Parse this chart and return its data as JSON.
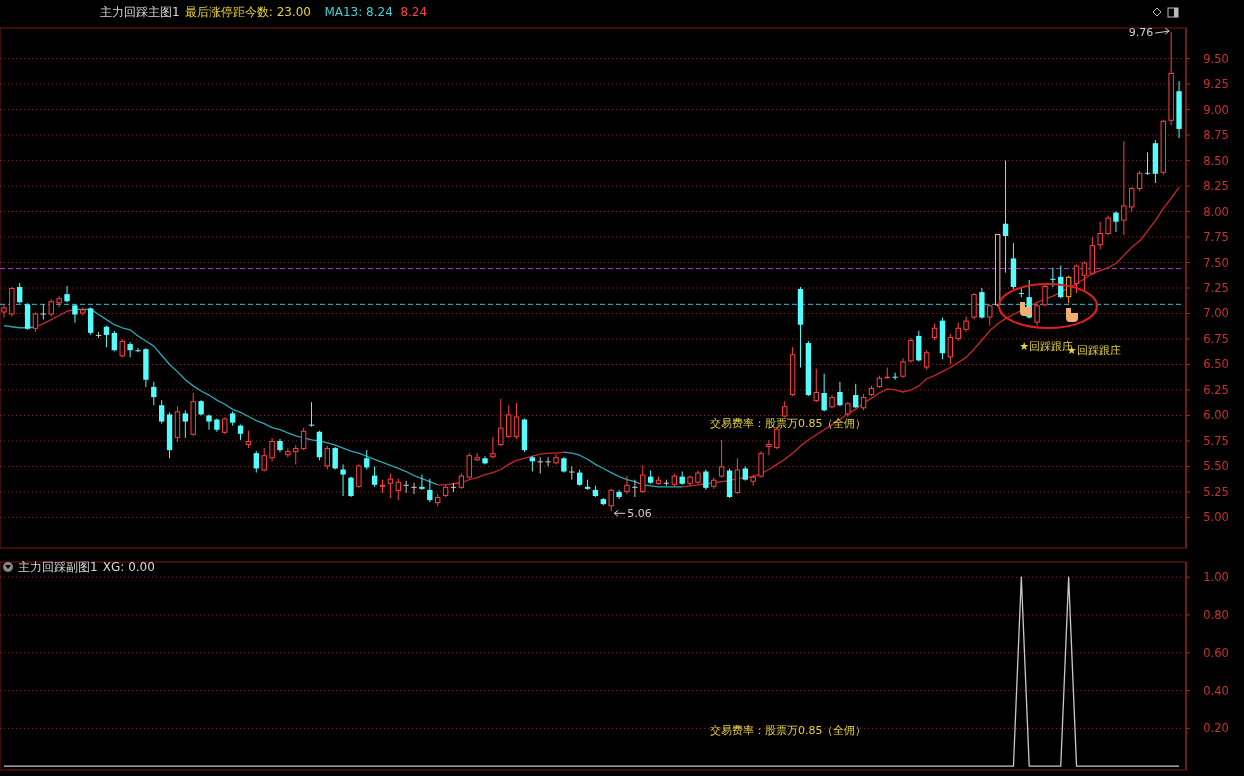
{
  "chart_data": [
    {
      "type": "candlestick",
      "title": "主力回踩主图1",
      "annotations": [
        "最后涨停距今数: 23.00",
        "MA13: 8.24",
        "8.24",
        "交易费率：股票万0.85（全佣）",
        "9.76",
        "5.06",
        "★回踩跟庄",
        "★回踩跟庄"
      ],
      "categories": [
        null,
        null,
        null,
        null,
        null,
        null,
        null,
        null,
        null,
        null,
        null,
        null,
        null,
        null,
        null,
        null,
        null,
        null,
        null,
        null,
        null,
        null,
        null,
        null,
        null,
        null,
        null,
        null,
        null,
        null,
        null,
        null,
        null,
        null,
        null,
        null,
        null,
        null,
        null,
        null,
        null,
        null,
        null,
        null,
        null,
        null,
        null,
        null,
        null,
        null,
        null,
        null,
        null,
        null,
        null,
        null,
        null,
        null,
        null,
        null,
        null,
        null,
        null,
        null,
        null,
        null,
        null,
        null,
        null,
        null,
        null,
        null,
        null,
        null,
        null,
        null,
        null,
        null,
        null,
        null,
        null,
        null,
        null,
        null,
        null,
        null,
        null,
        null,
        null,
        null,
        null,
        null,
        null,
        null,
        null,
        null,
        null,
        null,
        null,
        null,
        null,
        null,
        null,
        null,
        null,
        null,
        null,
        null,
        null,
        null,
        null,
        null,
        null,
        null,
        null,
        null,
        null,
        null,
        null,
        null,
        null,
        null,
        null,
        null,
        null,
        null,
        null,
        null,
        null,
        null,
        null,
        null,
        null,
        null,
        null,
        null,
        null,
        null,
        null,
        null,
        null,
        null,
        null,
        null,
        null,
        null,
        null,
        null,
        null,
        null
      ],
      "ohlc": [
        [
          7.01,
          7.08,
          6.96,
          7.06
        ],
        [
          6.99,
          7.26,
          6.97,
          7.25
        ],
        [
          7.26,
          7.3,
          7.1,
          7.11
        ],
        [
          7.09,
          7.1,
          6.84,
          6.85
        ],
        [
          6.85,
          7.01,
          6.82,
          7.0
        ],
        [
          7.0,
          7.09,
          6.94,
          7.0
        ],
        [
          6.99,
          7.14,
          6.97,
          7.12
        ],
        [
          7.1,
          7.17,
          7.06,
          7.15
        ],
        [
          7.19,
          7.27,
          7.11,
          7.12
        ],
        [
          7.08,
          7.09,
          6.91,
          6.99
        ],
        [
          7.0,
          7.06,
          6.98,
          7.04
        ],
        [
          7.05,
          7.06,
          6.79,
          6.81
        ],
        [
          6.79,
          6.82,
          6.76,
          6.79
        ],
        [
          6.87,
          6.88,
          6.67,
          6.79
        ],
        [
          6.81,
          6.83,
          6.63,
          6.64
        ],
        [
          6.58,
          6.75,
          6.57,
          6.73
        ],
        [
          6.7,
          6.72,
          6.57,
          6.64
        ],
        [
          6.64,
          6.66,
          6.62,
          6.63
        ],
        [
          6.65,
          6.66,
          6.28,
          6.35
        ],
        [
          6.28,
          6.33,
          6.1,
          6.18
        ],
        [
          6.1,
          6.15,
          5.92,
          5.94
        ],
        [
          6.01,
          6.03,
          5.58,
          5.66
        ],
        [
          5.78,
          6.09,
          5.74,
          6.04
        ],
        [
          6.02,
          6.05,
          5.78,
          5.94
        ],
        [
          5.81,
          6.22,
          5.8,
          6.14
        ],
        [
          6.14,
          6.15,
          6.0,
          6.01
        ],
        [
          6.0,
          6.01,
          5.86,
          5.94
        ],
        [
          5.96,
          5.97,
          5.84,
          5.86
        ],
        [
          5.83,
          5.98,
          5.82,
          5.97
        ],
        [
          6.02,
          6.04,
          5.9,
          5.93
        ],
        [
          5.9,
          5.91,
          5.76,
          5.82
        ],
        [
          5.71,
          5.85,
          5.68,
          5.75
        ],
        [
          5.63,
          5.65,
          5.44,
          5.48
        ],
        [
          5.46,
          5.68,
          5.45,
          5.61
        ],
        [
          5.58,
          5.78,
          5.55,
          5.75
        ],
        [
          5.75,
          5.77,
          5.64,
          5.66
        ],
        [
          5.61,
          5.68,
          5.59,
          5.65
        ],
        [
          5.64,
          5.71,
          5.52,
          5.68
        ],
        [
          5.67,
          5.88,
          5.66,
          5.85
        ],
        [
          5.91,
          6.13,
          5.89,
          5.9
        ],
        [
          5.84,
          5.85,
          5.56,
          5.59
        ],
        [
          5.5,
          5.7,
          5.47,
          5.68
        ],
        [
          5.68,
          5.69,
          5.47,
          5.48
        ],
        [
          5.47,
          5.52,
          5.21,
          5.42
        ],
        [
          5.39,
          5.4,
          5.2,
          5.21
        ],
        [
          5.3,
          5.52,
          5.29,
          5.51
        ],
        [
          5.58,
          5.66,
          5.47,
          5.49
        ],
        [
          5.41,
          5.5,
          5.3,
          5.32
        ],
        [
          5.3,
          5.37,
          5.24,
          5.32
        ],
        [
          5.33,
          5.43,
          5.19,
          5.38
        ],
        [
          5.26,
          5.38,
          5.17,
          5.35
        ],
        [
          5.32,
          5.36,
          5.24,
          5.32
        ],
        [
          5.3,
          5.34,
          5.23,
          5.3
        ],
        [
          5.3,
          5.42,
          5.27,
          5.28
        ],
        [
          5.27,
          5.38,
          5.15,
          5.17
        ],
        [
          5.14,
          5.23,
          5.11,
          5.2
        ],
        [
          5.21,
          5.32,
          5.2,
          5.3
        ],
        [
          5.3,
          5.34,
          5.25,
          5.3
        ],
        [
          5.29,
          5.43,
          5.28,
          5.41
        ],
        [
          5.39,
          5.63,
          5.38,
          5.61
        ],
        [
          5.56,
          5.63,
          5.55,
          5.59
        ],
        [
          5.58,
          5.6,
          5.52,
          5.53
        ],
        [
          5.59,
          5.79,
          5.58,
          5.63
        ],
        [
          5.71,
          6.16,
          5.7,
          5.88
        ],
        [
          5.79,
          6.1,
          5.78,
          6.01
        ],
        [
          5.79,
          6.12,
          5.77,
          5.99
        ],
        [
          5.96,
          5.97,
          5.64,
          5.66
        ],
        [
          5.59,
          5.6,
          5.45,
          5.55
        ],
        [
          5.55,
          5.59,
          5.43,
          5.55
        ],
        [
          5.55,
          5.59,
          5.5,
          5.55
        ],
        [
          5.53,
          5.62,
          5.52,
          5.59
        ],
        [
          5.58,
          5.59,
          5.44,
          5.45
        ],
        [
          5.45,
          5.5,
          5.37,
          5.45
        ],
        [
          5.44,
          5.47,
          5.31,
          5.32
        ],
        [
          5.3,
          5.37,
          5.27,
          5.28
        ],
        [
          5.27,
          5.31,
          5.2,
          5.21
        ],
        [
          5.18,
          5.19,
          5.12,
          5.13
        ],
        [
          5.11,
          5.28,
          5.06,
          5.27
        ],
        [
          5.25,
          5.27,
          5.18,
          5.2
        ],
        [
          5.25,
          5.41,
          5.23,
          5.32
        ],
        [
          5.3,
          5.37,
          5.2,
          5.3
        ],
        [
          5.25,
          5.51,
          5.24,
          5.42
        ],
        [
          5.4,
          5.46,
          5.33,
          5.34
        ],
        [
          5.33,
          5.4,
          5.32,
          5.37
        ],
        [
          5.34,
          5.37,
          5.31,
          5.34
        ],
        [
          5.32,
          5.43,
          5.3,
          5.41
        ],
        [
          5.4,
          5.45,
          5.32,
          5.33
        ],
        [
          5.33,
          5.41,
          5.31,
          5.4
        ],
        [
          5.34,
          5.46,
          5.33,
          5.44
        ],
        [
          5.45,
          5.47,
          5.27,
          5.29
        ],
        [
          5.3,
          5.39,
          5.28,
          5.37
        ],
        [
          5.4,
          5.76,
          5.39,
          5.5
        ],
        [
          5.46,
          5.48,
          5.19,
          5.2
        ],
        [
          5.24,
          5.58,
          5.23,
          5.47
        ],
        [
          5.48,
          5.5,
          5.36,
          5.37
        ],
        [
          5.35,
          5.42,
          5.31,
          5.4
        ],
        [
          5.4,
          5.65,
          5.39,
          5.63
        ],
        [
          5.69,
          5.76,
          5.61,
          5.72
        ],
        [
          5.68,
          5.89,
          5.67,
          5.87
        ],
        [
          5.99,
          6.14,
          5.98,
          6.09
        ],
        [
          6.2,
          6.67,
          6.19,
          6.6
        ],
        [
          7.24,
          7.26,
          6.47,
          6.89
        ],
        [
          6.71,
          6.73,
          6.19,
          6.2
        ],
        [
          6.14,
          6.46,
          6.13,
          6.23
        ],
        [
          6.22,
          6.41,
          6.04,
          6.05
        ],
        [
          6.08,
          6.2,
          6.07,
          6.18
        ],
        [
          6.23,
          6.33,
          6.09,
          6.1
        ],
        [
          6.01,
          6.13,
          5.99,
          6.12
        ],
        [
          6.2,
          6.31,
          6.07,
          6.08
        ],
        [
          6.07,
          6.21,
          6.05,
          6.18
        ],
        [
          6.2,
          6.29,
          6.19,
          6.27
        ],
        [
          6.28,
          6.39,
          6.27,
          6.37
        ],
        [
          6.37,
          6.47,
          6.36,
          6.38
        ],
        [
          6.38,
          6.42,
          6.35,
          6.38
        ],
        [
          6.38,
          6.56,
          6.37,
          6.53
        ],
        [
          6.53,
          6.76,
          6.52,
          6.74
        ],
        [
          6.78,
          6.83,
          6.53,
          6.54
        ],
        [
          6.47,
          6.64,
          6.45,
          6.62
        ],
        [
          6.76,
          6.9,
          6.74,
          6.86
        ],
        [
          6.93,
          6.96,
          6.55,
          6.61
        ],
        [
          6.57,
          6.8,
          6.5,
          6.77
        ],
        [
          6.75,
          6.91,
          6.73,
          6.86
        ],
        [
          6.84,
          6.97,
          6.82,
          6.93
        ],
        [
          6.96,
          7.2,
          6.94,
          7.19
        ],
        [
          7.21,
          7.25,
          6.95,
          6.96
        ],
        [
          6.96,
          7.09,
          6.88,
          7.08
        ],
        [
          7.08,
          7.78,
          7.07,
          7.78
        ],
        [
          7.88,
          8.5,
          7.4,
          7.76
        ],
        [
          7.54,
          7.69,
          7.24,
          7.26
        ],
        [
          7.2,
          7.26,
          7.16,
          7.2
        ],
        [
          7.16,
          7.33,
          6.95,
          6.96
        ],
        [
          6.91,
          7.1,
          6.88,
          7.08
        ],
        [
          7.08,
          7.28,
          7.07,
          7.27
        ],
        [
          7.34,
          7.45,
          7.26,
          7.34
        ],
        [
          7.36,
          7.47,
          7.15,
          7.16
        ],
        [
          7.16,
          7.37,
          7.1,
          7.36
        ],
        [
          7.29,
          7.48,
          7.2,
          7.47
        ],
        [
          7.37,
          7.51,
          7.22,
          7.5
        ],
        [
          7.39,
          7.75,
          7.38,
          7.67
        ],
        [
          7.67,
          7.9,
          7.63,
          7.79
        ],
        [
          7.78,
          7.96,
          7.77,
          7.94
        ],
        [
          7.99,
          8.0,
          7.8,
          7.9
        ],
        [
          7.91,
          8.69,
          7.77,
          8.06
        ],
        [
          8.04,
          8.24,
          8.0,
          8.23
        ],
        [
          8.22,
          8.4,
          8.2,
          8.38
        ],
        [
          8.38,
          8.58,
          8.36,
          8.38
        ],
        [
          8.67,
          8.7,
          8.28,
          8.37
        ],
        [
          8.38,
          8.9,
          8.36,
          8.89
        ],
        [
          8.89,
          9.76,
          8.85,
          9.36
        ],
        [
          9.18,
          9.28,
          8.72,
          8.81
        ]
      ],
      "colors": [
        "#ff4040",
        "#ff4040",
        "#54fcfc",
        "#54fcfc",
        "#ff4040",
        "#54fcfc",
        "#ff4040",
        "#ff4040",
        "#54fcfc",
        "#54fcfc",
        "#ff4040",
        "#54fcfc",
        "#c8c8c8",
        "#54fcfc",
        "#54fcfc",
        "#ff4040",
        "#54fcfc",
        "#54fcfc",
        "#54fcfc",
        "#54fcfc",
        "#54fcfc",
        "#54fcfc",
        "#ff4040",
        "#54fcfc",
        "#ff4040",
        "#54fcfc",
        "#54fcfc",
        "#54fcfc",
        "#ff4040",
        "#54fcfc",
        "#54fcfc",
        "#ff4040",
        "#54fcfc",
        "#ff4040",
        "#ff4040",
        "#54fcfc",
        "#ff4040",
        "#ff4040",
        "#ff4040",
        "#54fcfc",
        "#54fcfc",
        "#ff4040",
        "#54fcfc",
        "#54fcfc",
        "#54fcfc",
        "#ff4040",
        "#54fcfc",
        "#54fcfc",
        "#ff4040",
        "#ff4040",
        "#ff4040",
        "#c8c8c8",
        "#c8c8c8",
        "#54fcfc",
        "#54fcfc",
        "#ff4040",
        "#ff4040",
        "#c8c8c8",
        "#ff4040",
        "#ff4040",
        "#ff4040",
        "#54fcfc",
        "#ff4040",
        "#ff4040",
        "#ff4040",
        "#ff4040",
        "#54fcfc",
        "#54fcfc",
        "#c8c8c8",
        "#c8c8c8",
        "#ff4040",
        "#54fcfc",
        "#c8c8c8",
        "#54fcfc",
        "#54fcfc",
        "#54fcfc",
        "#54fcfc",
        "#ff4040",
        "#54fcfc",
        "#ff4040",
        "#c8c8c8",
        "#ff4040",
        "#54fcfc",
        "#ff4040",
        "#c8c8c8",
        "#ff4040",
        "#54fcfc",
        "#ff4040",
        "#ff4040",
        "#54fcfc",
        "#ff4040",
        "#ff4040",
        "#54fcfc",
        "#ff4040",
        "#54fcfc",
        "#ff4040",
        "#ff4040",
        "#ff4040",
        "#ff4040",
        "#ff4040",
        "#ff4040",
        "#54fcfc",
        "#54fcfc",
        "#ff4040",
        "#54fcfc",
        "#ff4040",
        "#54fcfc",
        "#ff4040",
        "#54fcfc",
        "#ff4040",
        "#ff4040",
        "#ff4040",
        "#ff4040",
        "#54fcfc",
        "#ff4040",
        "#ff4040",
        "#54fcfc",
        "#ff4040",
        "#ff4040",
        "#54fcfc",
        "#ff4040",
        "#ff4040",
        "#ff4040",
        "#ff4040",
        "#54fcfc",
        "#ff4040",
        "#ffb0b0",
        "#54fcfc",
        "#54fcfc",
        "#54fcfc",
        "#54fcfc",
        "#ff4040",
        "#ff4040",
        "#54fcfc",
        "#54fcfc",
        "#ffa500",
        "#ff4040",
        "#ff4040",
        "#ff4040",
        "#ff4040",
        "#ff4040",
        "#54fcfc",
        "#ff4040",
        "#ff4040",
        "#ff4040",
        "#54fcfc",
        "#54fcfc",
        "#ff4040",
        "#ff4040",
        "#54fcfc"
      ],
      "series": [
        {
          "type": "line",
          "color": "#c8282a",
          "values": [
            null,
            null,
            null,
            null,
            6.87,
            6.9,
            6.94,
            6.98,
            7.02,
            7.04,
            null,
            null,
            null,
            null,
            null,
            null,
            null,
            null,
            null,
            null,
            null,
            null,
            null,
            null,
            null,
            null,
            null,
            null,
            null,
            null,
            null,
            null,
            null,
            null,
            null,
            null,
            null,
            null,
            null,
            null,
            null,
            null,
            null,
            null,
            null,
            null,
            null,
            null,
            null,
            null,
            null,
            null,
            null,
            null,
            null,
            5.32,
            5.32,
            5.33,
            5.34,
            5.37,
            5.39,
            5.42,
            5.44,
            5.47,
            5.52,
            5.56,
            5.58,
            5.6,
            5.62,
            5.63,
            5.63,
            5.64,
            null,
            null,
            null,
            null,
            null,
            null,
            null,
            null,
            null,
            null,
            null,
            null,
            null,
            null,
            5.3,
            5.31,
            5.32,
            5.33,
            5.34,
            5.35,
            5.36,
            5.38,
            5.39,
            5.4,
            5.43,
            5.47,
            5.52,
            5.57,
            5.63,
            5.7,
            5.76,
            5.81,
            5.86,
            5.91,
            5.96,
            6.02,
            6.06,
            6.12,
            6.17,
            6.22,
            6.26,
            6.25,
            6.23,
            6.25,
            6.29,
            6.36,
            6.39,
            6.43,
            6.47,
            6.52,
            6.57,
            6.65,
            6.74,
            6.83,
            6.9,
            6.95,
            6.99,
            7.03,
            7.07,
            7.11,
            7.14,
            7.17,
            7.21,
            7.25,
            7.29,
            7.34,
            7.39,
            7.42,
            7.45,
            7.49,
            7.57,
            7.65,
            7.71,
            7.81,
            7.91,
            8.03,
            8.13,
            8.24
          ]
        },
        {
          "type": "line",
          "color": "#2aa8b4",
          "values": [
            6.88,
            6.87,
            6.86,
            6.86,
            6.87,
            null,
            null,
            null,
            null,
            7.04,
            7.04,
            7.04,
            6.99,
            6.94,
            6.89,
            6.86,
            6.84,
            6.78,
            6.73,
            6.68,
            6.59,
            6.5,
            6.43,
            6.35,
            6.29,
            6.24,
            6.2,
            6.15,
            6.11,
            6.06,
            6.03,
            5.99,
            5.95,
            5.92,
            5.88,
            5.86,
            5.83,
            5.8,
            5.78,
            5.76,
            5.75,
            5.73,
            5.71,
            5.68,
            5.65,
            5.63,
            5.6,
            5.57,
            5.54,
            5.51,
            5.48,
            5.45,
            5.41,
            5.38,
            5.35,
            5.32,
            null,
            null,
            null,
            null,
            null,
            null,
            null,
            null,
            null,
            null,
            null,
            null,
            null,
            null,
            null,
            5.64,
            5.63,
            5.61,
            5.57,
            5.52,
            5.48,
            5.44,
            5.4,
            5.37,
            5.35,
            5.32,
            5.31,
            5.3,
            5.3,
            5.3,
            5.3,
            null,
            null,
            null,
            null,
            null,
            null,
            null,
            null,
            null,
            null,
            null,
            null,
            null,
            null,
            null,
            null,
            null,
            null,
            null,
            null,
            null,
            null,
            null,
            null,
            null,
            null,
            null,
            null,
            null,
            null,
            null,
            null,
            null,
            null,
            null,
            null,
            null,
            null,
            null,
            null,
            null,
            null,
            null,
            null,
            null,
            null,
            null,
            null,
            null,
            null,
            null,
            null,
            null,
            null,
            null,
            null,
            null,
            null,
            null,
            null,
            null,
            null,
            null
          ]
        }
      ],
      "ref_lines": [
        {
          "axis": "y",
          "value": 7.44,
          "color": "#b040d0",
          "line_style": "dashed"
        },
        {
          "axis": "y",
          "value": 7.09,
          "color": "#40c0d0",
          "line_style": "dashed"
        }
      ],
      "ylim": [
        4.7,
        9.8
      ],
      "yticks": [
        {
          "value": 5,
          "label": "5.00"
        },
        {
          "value": 5.25,
          "label": "5.25"
        },
        {
          "value": 5.5,
          "label": "5.50"
        },
        {
          "value": 5.75,
          "label": "5.75"
        },
        {
          "value": 6,
          "label": "6.00"
        },
        {
          "value": 6.25,
          "label": "6.25"
        },
        {
          "value": 6.5,
          "label": "6.50"
        },
        {
          "value": 6.75,
          "label": "6.75"
        },
        {
          "value": 7,
          "label": "7.00"
        },
        {
          "value": 7.25,
          "label": "7.25"
        },
        {
          "value": 7.5,
          "label": "7.50"
        },
        {
          "value": 7.75,
          "label": "7.75"
        },
        {
          "value": 8,
          "label": "8.00"
        },
        {
          "value": 8.25,
          "label": "8.25"
        },
        {
          "value": 8.5,
          "label": "8.50"
        },
        {
          "value": 8.75,
          "label": "8.75"
        },
        {
          "value": 9,
          "label": "9.00"
        },
        {
          "value": 9.25,
          "label": "9.25"
        },
        {
          "value": 9.5,
          "label": "9.50"
        }
      ],
      "grid": "y",
      "tick_labels": "y"
    },
    {
      "type": "line",
      "title": "主力回踩副图1",
      "annotations": [
        "XG: 0.00",
        "交易费率：股票万0.85（全佣）"
      ],
      "categories": [
        null,
        null,
        null,
        null,
        null,
        null,
        null,
        null,
        null,
        null,
        null,
        null,
        null,
        null,
        null,
        null,
        null,
        null,
        null,
        null,
        null,
        null,
        null,
        null,
        null,
        null,
        null,
        null,
        null,
        null,
        null,
        null,
        null,
        null,
        null,
        null,
        null,
        null,
        null,
        null,
        null,
        null,
        null,
        null,
        null,
        null,
        null,
        null,
        null,
        null,
        null,
        null,
        null,
        null,
        null,
        null,
        null,
        null,
        null,
        null,
        null,
        null,
        null,
        null,
        null,
        null,
        null,
        null,
        null,
        null,
        null,
        null,
        null,
        null,
        null,
        null,
        null,
        null,
        null,
        null,
        null,
        null,
        null,
        null,
        null,
        null,
        null,
        null,
        null,
        null,
        null,
        null,
        null,
        null,
        null,
        null,
        null,
        null,
        null,
        null,
        null,
        null,
        null,
        null,
        null,
        null,
        null,
        null,
        null,
        null,
        null,
        null,
        null,
        null,
        null,
        null,
        null,
        null,
        null,
        null,
        null,
        null,
        null,
        null,
        null,
        null,
        null,
        null,
        null,
        null,
        null,
        null,
        null,
        null,
        null,
        null,
        null,
        null,
        null,
        null,
        null,
        null,
        null,
        null,
        null,
        null,
        null,
        null,
        null,
        null
      ],
      "series": [
        {
          "color": "#c8c8c8",
          "values": [
            0,
            0,
            0,
            0,
            0,
            0,
            0,
            0,
            0,
            0,
            0,
            0,
            0,
            0,
            0,
            0,
            0,
            0,
            0,
            0,
            0,
            0,
            0,
            0,
            0,
            0,
            0,
            0,
            0,
            0,
            0,
            0,
            0,
            0,
            0,
            0,
            0,
            0,
            0,
            0,
            0,
            0,
            0,
            0,
            0,
            0,
            0,
            0,
            0,
            0,
            0,
            0,
            0,
            0,
            0,
            0,
            0,
            0,
            0,
            0,
            0,
            0,
            0,
            0,
            0,
            0,
            0,
            0,
            0,
            0,
            0,
            0,
            0,
            0,
            0,
            0,
            0,
            0,
            0,
            0,
            0,
            0,
            0,
            0,
            0,
            0,
            0,
            0,
            0,
            0,
            0,
            0,
            0,
            0,
            0,
            0,
            0,
            0,
            0,
            0,
            0,
            0,
            0,
            0,
            0,
            0,
            0,
            0,
            0,
            0,
            0,
            0,
            0,
            0,
            0,
            0,
            0,
            0,
            0,
            0,
            0,
            0,
            0,
            0,
            0,
            0,
            0,
            0,
            0,
            1,
            0,
            0,
            0,
            0,
            0,
            1,
            0,
            0,
            0,
            0,
            0,
            0,
            0,
            0,
            0,
            0,
            0,
            0,
            0,
            0
          ]
        }
      ],
      "ylim": [
        -0.02,
        1.08
      ],
      "yticks": [
        {
          "value": 0.2,
          "label": "0.20"
        },
        {
          "value": 0.4,
          "label": "0.40"
        },
        {
          "value": 0.6,
          "label": "0.60"
        },
        {
          "value": 0.8,
          "label": "0.80"
        },
        {
          "value": 1,
          "label": "1.00"
        }
      ],
      "grid": "y",
      "tick_labels": "y"
    }
  ]
}
